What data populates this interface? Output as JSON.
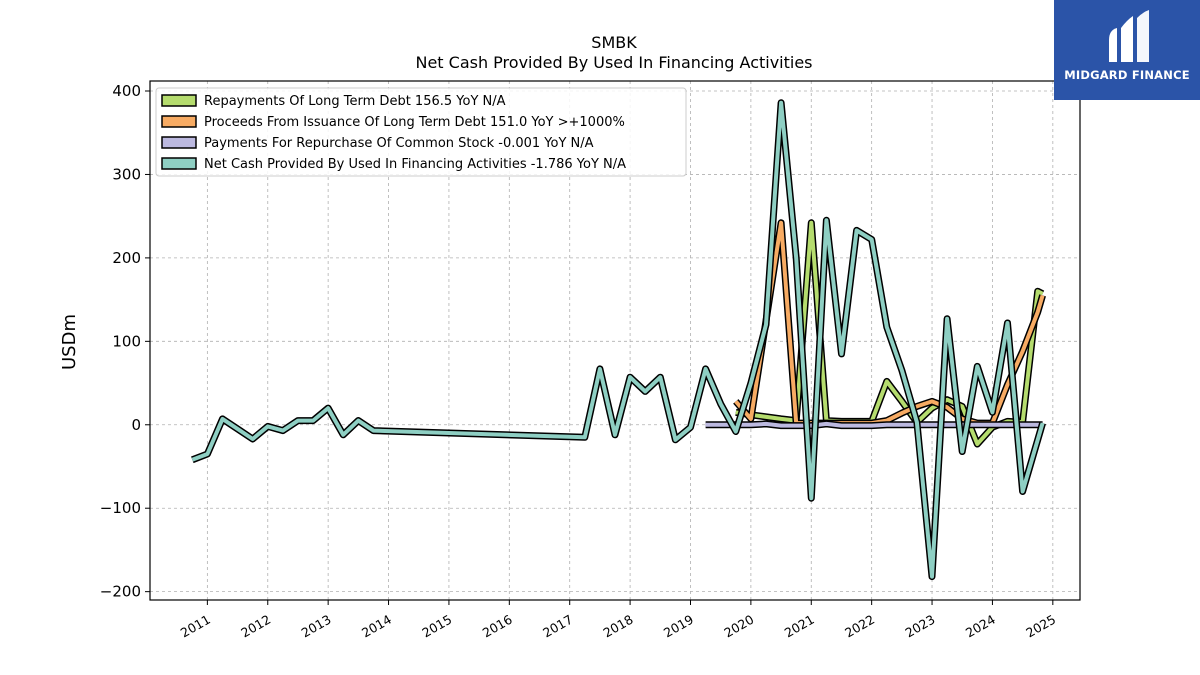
{
  "chart_data": {
    "type": "line",
    "title": "SMBK",
    "subtitle": "Net Cash Provided By Used In Financing Activities",
    "ylabel": "USDm",
    "xlabel": "",
    "ylim": [
      -210,
      412
    ],
    "xlim": [
      2010.05,
      2025.45
    ],
    "yticks": [
      400,
      300,
      200,
      100,
      0,
      -100,
      -200
    ],
    "ytick_labels": [
      "400",
      "300",
      "200",
      "100",
      "0",
      "−100",
      "−200"
    ],
    "xticks": [
      2011,
      2012,
      2013,
      2014,
      2015,
      2016,
      2017,
      2018,
      2019,
      2020,
      2021,
      2022,
      2023,
      2024,
      2025
    ],
    "grid": true,
    "legend_position": "top-left",
    "series": [
      {
        "name": "Repayments Of Long Term Debt",
        "legend": "Repayments Of Long Term Debt  156.5 YoY N/A",
        "color": "#b5dc6e",
        "points": [
          [
            2019.75,
            15
          ],
          [
            2020.0,
            12
          ],
          [
            2020.5,
            7
          ],
          [
            2020.75,
            5
          ],
          [
            2021.0,
            242
          ],
          [
            2021.25,
            5
          ],
          [
            2021.5,
            4
          ],
          [
            2021.75,
            4
          ],
          [
            2022.0,
            4
          ],
          [
            2022.25,
            52
          ],
          [
            2022.5,
            28
          ],
          [
            2022.75,
            3
          ],
          [
            2023.0,
            20
          ],
          [
            2023.25,
            30
          ],
          [
            2023.5,
            22
          ],
          [
            2023.75,
            -23
          ],
          [
            2024.0,
            -3
          ],
          [
            2024.25,
            4
          ],
          [
            2024.5,
            3
          ],
          [
            2024.75,
            160
          ],
          [
            2024.83,
            157
          ]
        ]
      },
      {
        "name": "Proceeds From Issuance Of Long Term Debt",
        "legend": "Proceeds From Issuance Of Long Term Debt  151.0 YoY >+1000%",
        "color": "#f7ab63",
        "points": [
          [
            2019.75,
            28
          ],
          [
            2020.0,
            7
          ],
          [
            2020.5,
            242
          ],
          [
            2020.75,
            2
          ],
          [
            2021.0,
            2
          ],
          [
            2021.25,
            2
          ],
          [
            2021.5,
            2
          ],
          [
            2021.75,
            2
          ],
          [
            2022.0,
            2
          ],
          [
            2022.25,
            5
          ],
          [
            2022.5,
            14
          ],
          [
            2022.75,
            22
          ],
          [
            2023.0,
            28
          ],
          [
            2023.25,
            21
          ],
          [
            2023.5,
            7
          ],
          [
            2023.75,
            2
          ],
          [
            2024.0,
            2
          ],
          [
            2024.25,
            48
          ],
          [
            2024.5,
            88
          ],
          [
            2024.75,
            135
          ],
          [
            2024.83,
            155
          ]
        ]
      },
      {
        "name": "Payments For Repurchase Of Common Stock",
        "legend": "Payments For Repurchase Of Common Stock  -0.001 YoY N/A",
        "color": "#bcb9e0",
        "points": [
          [
            2019.25,
            0
          ],
          [
            2019.5,
            0
          ],
          [
            2019.75,
            0
          ],
          [
            2020.0,
            0
          ],
          [
            2020.25,
            1
          ],
          [
            2020.5,
            -1
          ],
          [
            2020.75,
            -1
          ],
          [
            2021.0,
            -1
          ],
          [
            2021.25,
            1
          ],
          [
            2021.5,
            -1
          ],
          [
            2021.75,
            -1
          ],
          [
            2022.0,
            -1
          ],
          [
            2022.25,
            0
          ],
          [
            2022.5,
            0
          ],
          [
            2022.75,
            0
          ],
          [
            2023.0,
            0
          ],
          [
            2023.25,
            0
          ],
          [
            2023.5,
            0
          ],
          [
            2023.75,
            0
          ],
          [
            2024.0,
            0
          ],
          [
            2024.25,
            0
          ],
          [
            2024.5,
            0
          ],
          [
            2024.75,
            0
          ],
          [
            2024.83,
            0
          ]
        ]
      },
      {
        "name": "Net Cash Provided By Used In Financing Activities",
        "legend": "Net Cash Provided By Used In Financing Activities  -1.786 YoY N/A",
        "color": "#8ecfc3",
        "points": [
          [
            2010.75,
            -42
          ],
          [
            2011.0,
            -35
          ],
          [
            2011.25,
            7
          ],
          [
            2011.5,
            -5
          ],
          [
            2011.75,
            -17
          ],
          [
            2012.0,
            -2
          ],
          [
            2012.25,
            -7
          ],
          [
            2012.5,
            5
          ],
          [
            2012.75,
            5
          ],
          [
            2013.0,
            20
          ],
          [
            2013.25,
            -12
          ],
          [
            2013.5,
            5
          ],
          [
            2013.75,
            -7
          ],
          [
            2017.25,
            -15
          ],
          [
            2017.5,
            67
          ],
          [
            2017.75,
            -12
          ],
          [
            2018.0,
            57
          ],
          [
            2018.25,
            40
          ],
          [
            2018.5,
            57
          ],
          [
            2018.75,
            -18
          ],
          [
            2019.0,
            -3
          ],
          [
            2019.25,
            67
          ],
          [
            2019.5,
            25
          ],
          [
            2019.75,
            -8
          ],
          [
            2020.0,
            50
          ],
          [
            2020.25,
            120
          ],
          [
            2020.5,
            386
          ],
          [
            2020.75,
            200
          ],
          [
            2021.0,
            -88
          ],
          [
            2021.25,
            245
          ],
          [
            2021.5,
            85
          ],
          [
            2021.75,
            233
          ],
          [
            2022.0,
            222
          ],
          [
            2022.25,
            117
          ],
          [
            2022.5,
            65
          ],
          [
            2022.75,
            3
          ],
          [
            2023.0,
            -182
          ],
          [
            2023.25,
            127
          ],
          [
            2023.5,
            -32
          ],
          [
            2023.75,
            70
          ],
          [
            2024.0,
            15
          ],
          [
            2024.25,
            122
          ],
          [
            2024.5,
            -80
          ],
          [
            2024.83,
            2
          ]
        ]
      }
    ]
  },
  "logo": {
    "text": "MIDGARD FINANCE",
    "color": "#2b54a8"
  }
}
